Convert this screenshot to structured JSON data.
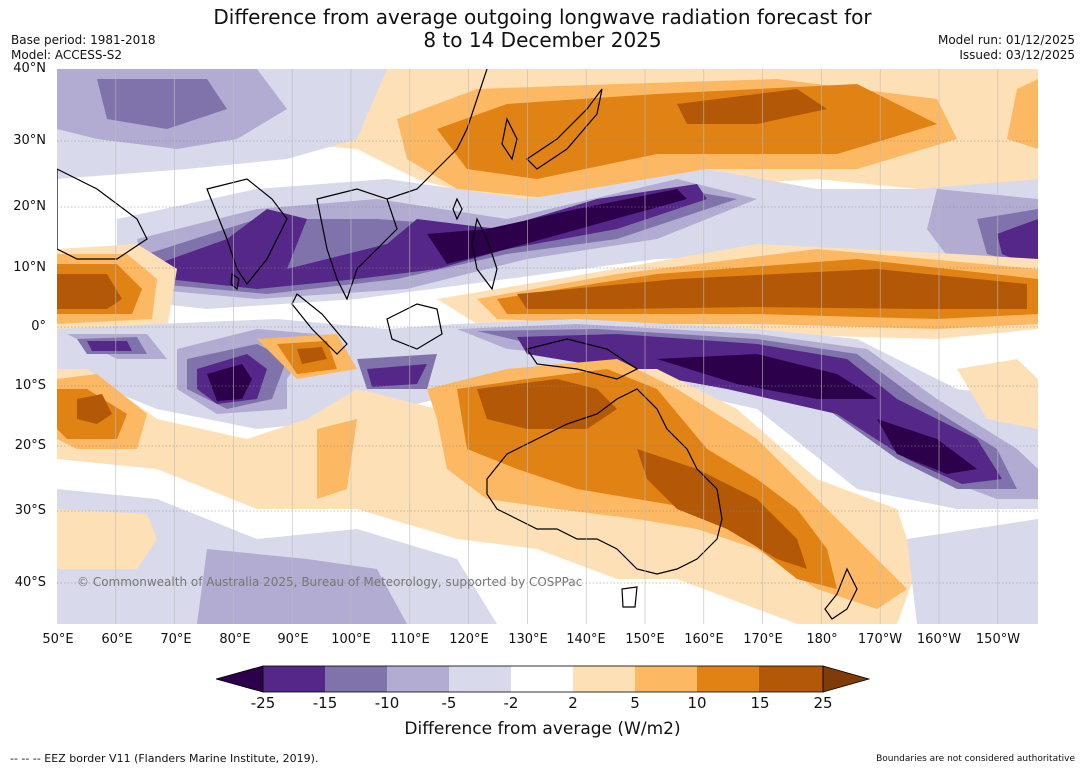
{
  "header": {
    "title_line1": "Difference from average outgoing longwave radiation forecast for",
    "title_line2": "8 to 14 December 2025",
    "base_period": "Base period: 1981-2018",
    "model": "Model: ACCESS-S2",
    "model_run": "Model run: 01/12/2025",
    "issued": "Issued: 03/12/2025"
  },
  "map": {
    "lat_labels": [
      "40°N",
      "30°N",
      "20°N",
      "10°N",
      "0°",
      "10°S",
      "20°S",
      "30°S",
      "40°S"
    ],
    "lon_labels": [
      "50°E",
      "60°E",
      "70°E",
      "80°E",
      "90°E",
      "100°E",
      "110°E",
      "120°E",
      "130°E",
      "140°E",
      "150°E",
      "160°E",
      "170°E",
      "180°",
      "170°W",
      "160°W",
      "150°W"
    ],
    "copyright": "© Commonwealth of Australia 2025, Bureau of Meteorology, supported by COSPPac",
    "colors": {
      "lt_neg25": "#2d004b",
      "neg25_neg15": "#542788",
      "neg15_neg10": "#8073ac",
      "neg10_neg5": "#b2abd2",
      "neg5_neg2": "#d8daeb",
      "neg2_2": "#ffffff",
      "pos2_5": "#fee0b6",
      "pos5_10": "#fdb863",
      "pos10_15": "#e08214",
      "pos15_25": "#b35806",
      "gt25": "#7f3b08"
    }
  },
  "colorbar": {
    "ticks": [
      "-25",
      "-15",
      "-10",
      "-5",
      "-2",
      "2",
      "5",
      "10",
      "15",
      "25"
    ],
    "title": "Difference from average (W/m2)"
  },
  "footer": {
    "eez_note": "--  --  -- EEZ border V11 (Flanders Marine Institute, 2019).",
    "disclaimer": "Boundaries are not considered authoritative"
  }
}
